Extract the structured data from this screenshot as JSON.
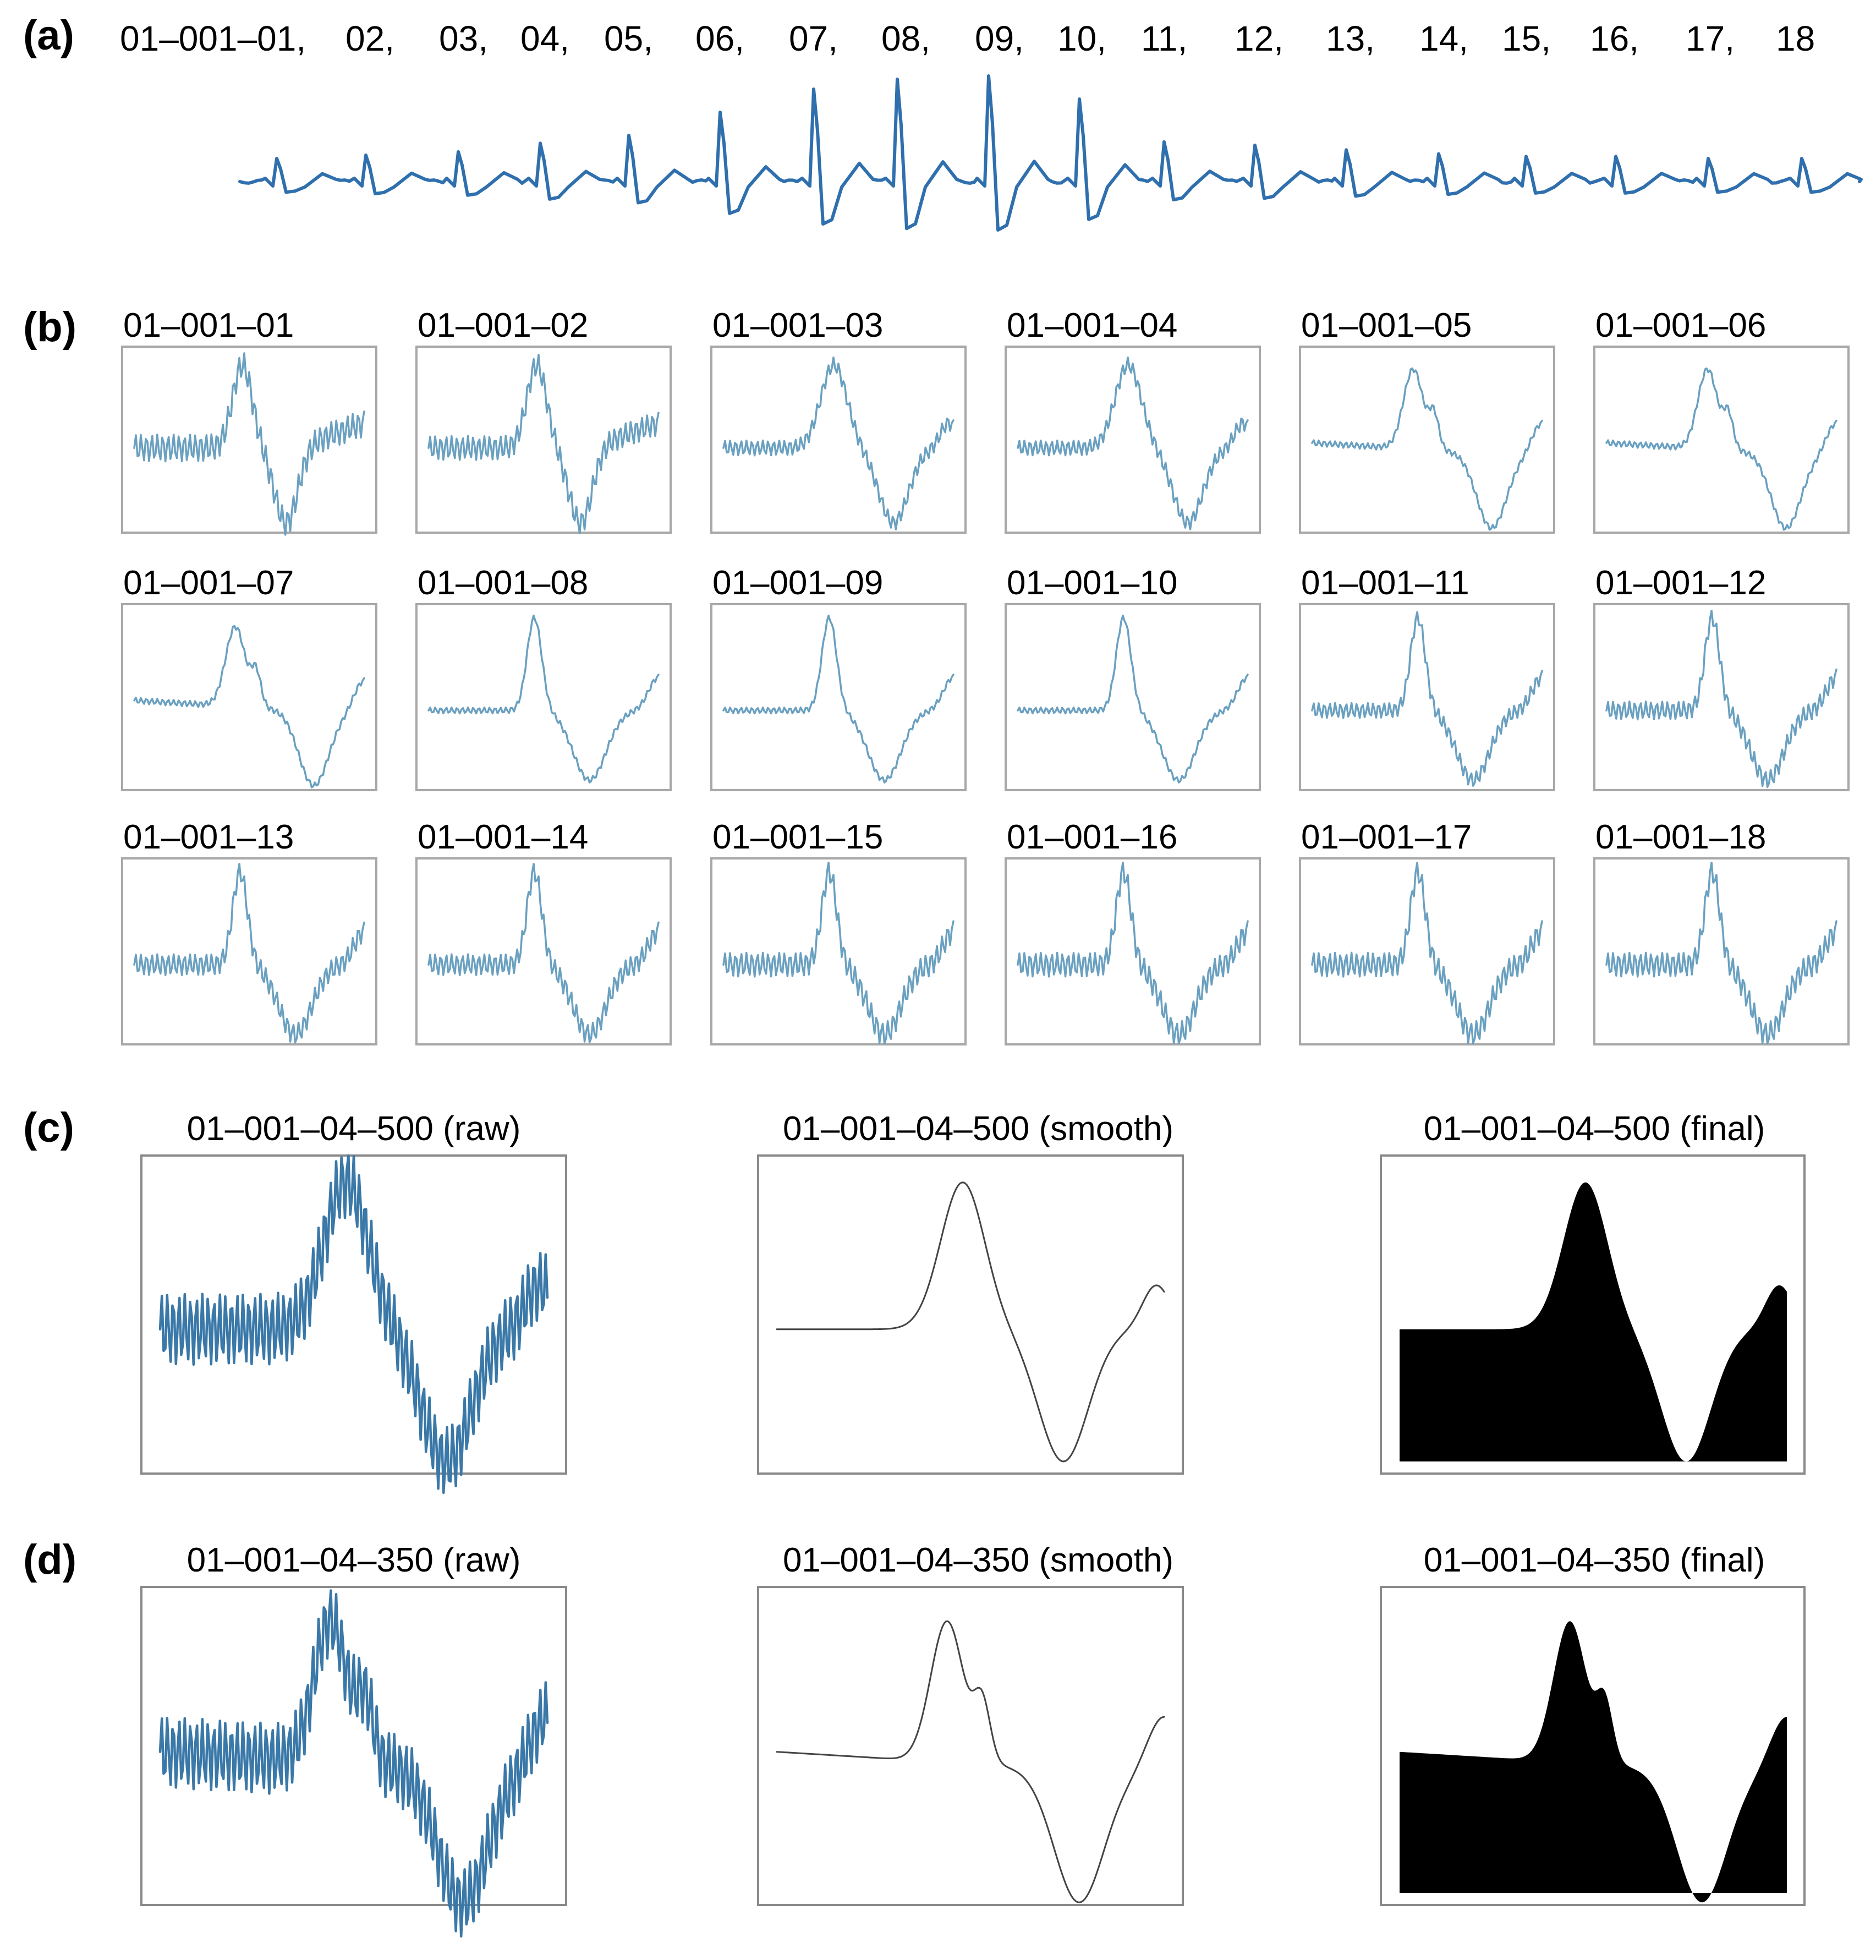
{
  "colors": {
    "ecg_long": "#2f6fad",
    "ecg_beat": "#6aa0c0",
    "ecg_raw": "#3a78a8",
    "smooth": "#444444",
    "final_fill": "#000000"
  },
  "panel_a": {
    "label": "(a)",
    "beat_labels": [
      "01–001–01,",
      "02,",
      "03,",
      "04,",
      "05,",
      "06,",
      "07,",
      "08,",
      "09,",
      "10,",
      "11,",
      "12,",
      "13,",
      "14,",
      "15,",
      "16,",
      "17,",
      "18"
    ],
    "r_peak_relative_heights": [
      0.35,
      0.4,
      0.45,
      0.58,
      0.7,
      1.05,
      1.4,
      1.55,
      1.6,
      1.25,
      0.6,
      0.55,
      0.48,
      0.42,
      0.38,
      0.38,
      0.35,
      0.35
    ]
  },
  "panel_b": {
    "label": "(b)",
    "beats": [
      {
        "title": "01–001–01",
        "noise": 0.9,
        "variant": "biphasic"
      },
      {
        "title": "01–001–02",
        "noise": 0.8,
        "variant": "biphasic"
      },
      {
        "title": "01–001–03",
        "noise": 0.5,
        "variant": "wide"
      },
      {
        "title": "01–001–04",
        "noise": 0.5,
        "variant": "wide"
      },
      {
        "title": "01–001–05",
        "noise": 0.2,
        "variant": "notched"
      },
      {
        "title": "01–001–06",
        "noise": 0.2,
        "variant": "notched"
      },
      {
        "title": "01–001–07",
        "noise": 0.2,
        "variant": "notched"
      },
      {
        "title": "01–001–08",
        "noise": 0.2,
        "variant": "narrow"
      },
      {
        "title": "01–001–09",
        "noise": 0.2,
        "variant": "narrow"
      },
      {
        "title": "01–001–10",
        "noise": 0.2,
        "variant": "narrow"
      },
      {
        "title": "01–001–11",
        "noise": 0.5,
        "variant": "narrow"
      },
      {
        "title": "01–001–12",
        "noise": 0.6,
        "variant": "narrow"
      },
      {
        "title": "01–001–13",
        "noise": 0.7,
        "variant": "narrow"
      },
      {
        "title": "01–001–14",
        "noise": 0.7,
        "variant": "narrow"
      },
      {
        "title": "01–001–15",
        "noise": 0.8,
        "variant": "narrow"
      },
      {
        "title": "01–001–16",
        "noise": 0.8,
        "variant": "narrow"
      },
      {
        "title": "01–001–17",
        "noise": 0.8,
        "variant": "narrow"
      },
      {
        "title": "01–001–18",
        "noise": 0.8,
        "variant": "narrow"
      }
    ]
  },
  "panel_c": {
    "label": "(c)",
    "raw_title": "01–001–04–500 (raw)",
    "smooth_title": "01–001–04–500 (smooth)",
    "final_title": "01–001–04–500 (final)"
  },
  "panel_d": {
    "label": "(d)",
    "raw_title": "01–001–04–350 (raw)",
    "smooth_title": "01–001–04–350 (smooth)",
    "final_title": "01–001–04–350 (final)"
  }
}
